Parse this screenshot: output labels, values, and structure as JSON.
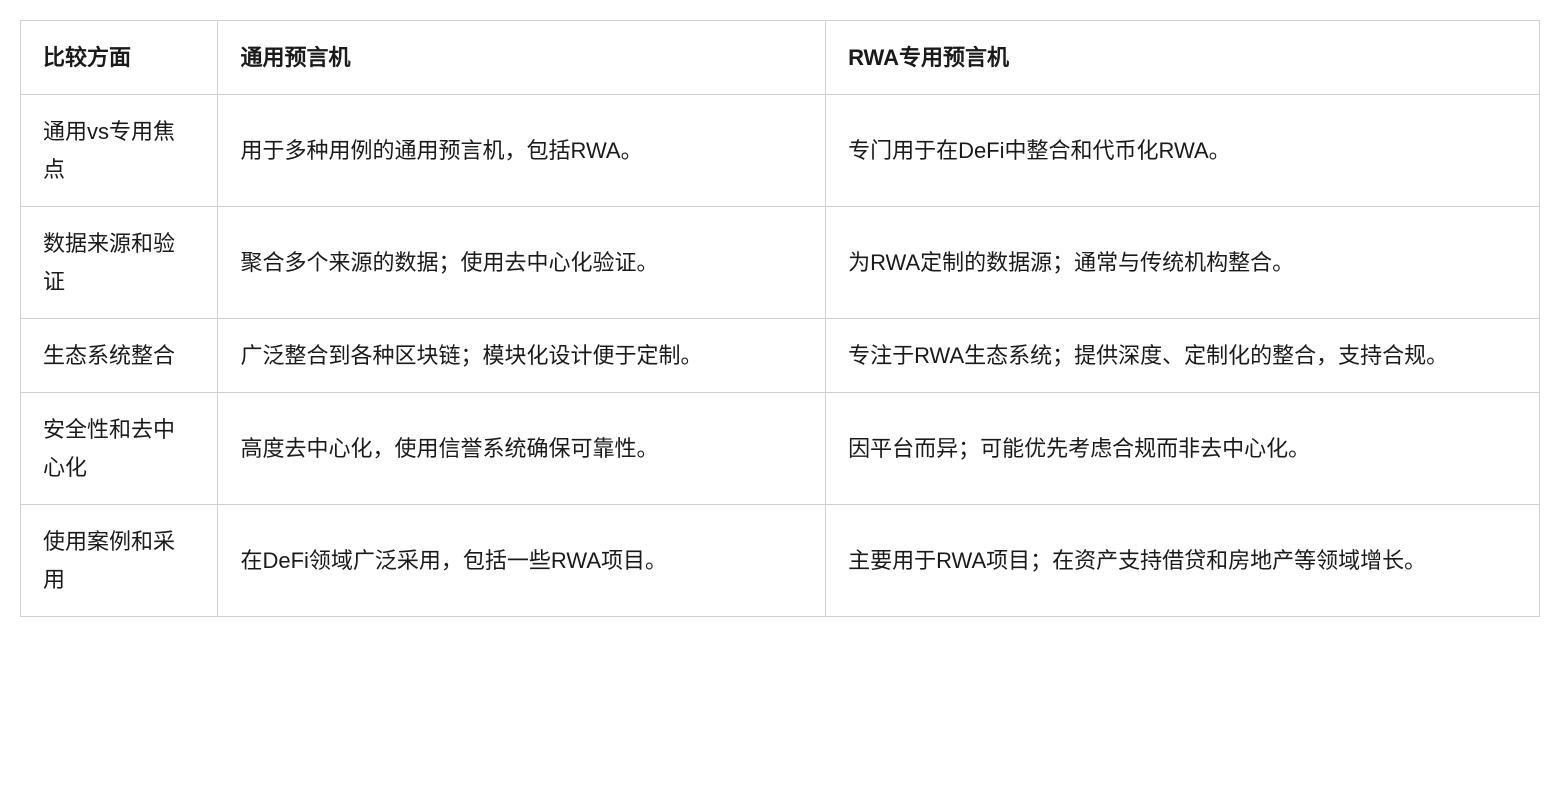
{
  "table": {
    "columns": [
      "比较方面",
      "通用预言机",
      "RWA专用预言机"
    ],
    "rows": [
      [
        "通用vs专用焦点",
        "用于多种用例的通用预言机，包括RWA。",
        "专门用于在DeFi中整合和代币化RWA。"
      ],
      [
        "数据来源和验证",
        "聚合多个来源的数据；使用去中心化验证。",
        "为RWA定制的数据源；通常与传统机构整合。"
      ],
      [
        "生态系统整合",
        "广泛整合到各种区块链；模块化设计便于定制。",
        "专注于RWA生态系统；提供深度、定制化的整合，支持合规。"
      ],
      [
        "安全性和去中心化",
        "高度去中心化，使用信誉系统确保可靠性。",
        "因平台而异；可能优先考虑合规而非去中心化。"
      ],
      [
        "使用案例和采用",
        "在DeFi领域广泛采用，包括一些RWA项目。",
        "主要用于RWA项目；在资产支持借贷和房地产等领域增长。"
      ]
    ],
    "column_widths": [
      "13%",
      "40%",
      "47%"
    ],
    "border_color": "#d0d0d0",
    "background_color": "#ffffff",
    "text_color": "#1a1a1a",
    "font_size": 22,
    "header_font_weight": 700,
    "cell_padding": "18px 22px",
    "line_height": 1.7
  }
}
